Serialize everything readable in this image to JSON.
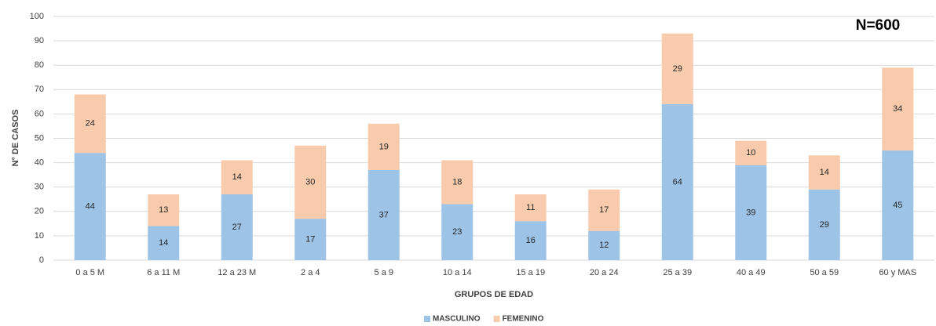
{
  "chart_data": {
    "type": "bar",
    "stacked": true,
    "annotation": "N=600",
    "y_label": "N° DE CASOS",
    "x_label": "GRUPOS DE EDAD",
    "categories": [
      "0 a 5 M",
      "6 a 11 M",
      "12 a 23 M",
      "2 a 4",
      "5 a 9",
      "10 a 14",
      "15 a 19",
      "20 a 24",
      "25 a 39",
      "40 a 49",
      "50 a 59",
      "60 y MAS"
    ],
    "series": [
      {
        "name": "MASCULINO",
        "color": "#9dc3e6",
        "values": [
          44,
          14,
          27,
          17,
          37,
          23,
          16,
          12,
          64,
          39,
          29,
          45
        ]
      },
      {
        "name": "FEMENINO",
        "color": "#f8cbad",
        "values": [
          24,
          13,
          14,
          30,
          19,
          18,
          11,
          17,
          29,
          10,
          14,
          34
        ]
      }
    ],
    "ylim": [
      0,
      100
    ],
    "yticks": [
      0,
      10,
      20,
      30,
      40,
      50,
      60,
      70,
      80,
      90,
      100
    ],
    "grid": true,
    "legend": "bottom"
  }
}
